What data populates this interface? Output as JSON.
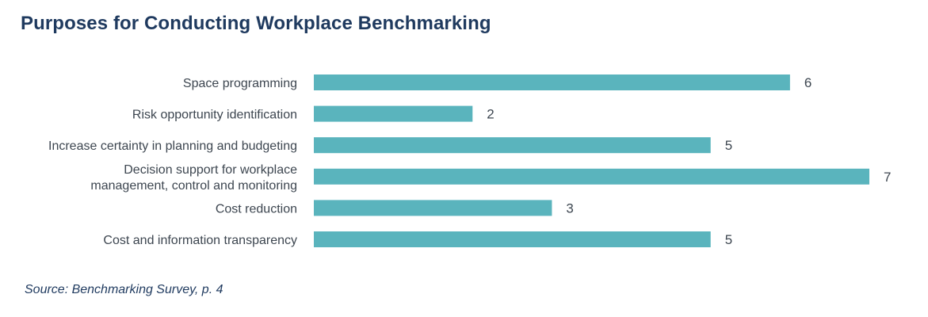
{
  "title": "Purposes for Conducting Workplace Benchmarking",
  "source": "Source: Benchmarking Survey, p. 4",
  "colors": {
    "bar": "#5ab4bd",
    "title": "#1f3a5f",
    "text": "#3d4650"
  },
  "chart_data": {
    "type": "bar",
    "orientation": "horizontal",
    "categories": [
      [
        "Space programming"
      ],
      [
        "Risk opportunity identification"
      ],
      [
        "Increase certainty in planning and budgeting"
      ],
      [
        "Decision support for workplace",
        "management, control and monitoring"
      ],
      [
        "Cost reduction"
      ],
      [
        "Cost and information transparency"
      ]
    ],
    "values": [
      6,
      2,
      5,
      7,
      3,
      5
    ],
    "xlim": [
      0,
      7
    ],
    "grid": false,
    "legend": "none",
    "data_labels": true
  }
}
